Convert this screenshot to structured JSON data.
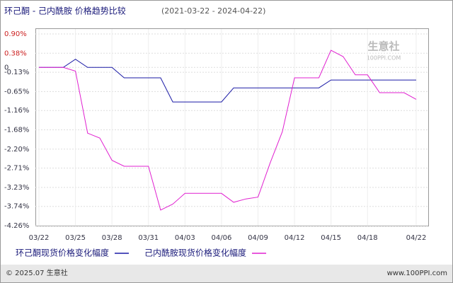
{
  "chart_data": {
    "type": "line",
    "title": "环己酮 - 己内酰胺  价格趋势比较",
    "subtitle": "(2021-03-22 - 2024-04-22)",
    "categories": [
      "03/22",
      null,
      null,
      "03/25",
      null,
      null,
      "03/28",
      null,
      null,
      "03/31",
      null,
      null,
      "04/03",
      null,
      null,
      "04/06",
      null,
      null,
      "04/09",
      null,
      null,
      "04/12",
      null,
      null,
      "04/15",
      null,
      null,
      "04/18",
      null,
      null,
      null,
      "04/22"
    ],
    "series": [
      {
        "name": "环己酮现货价格变化幅度",
        "color": "#1a1aa6",
        "values": [
          0,
          0,
          0,
          0.22,
          0,
          0,
          0,
          -0.28,
          -0.28,
          -0.28,
          -0.28,
          -0.93,
          -0.93,
          -0.93,
          -0.93,
          -0.93,
          -0.55,
          -0.55,
          -0.55,
          -0.55,
          -0.55,
          -0.55,
          -0.55,
          -0.55,
          -0.34,
          -0.34,
          -0.34,
          -0.34,
          -0.34,
          -0.34,
          -0.34,
          -0.34
        ]
      },
      {
        "name": "己内酰胺现货价格变化幅度",
        "color": "#e020d0",
        "values": [
          0,
          0,
          0,
          -0.1,
          -1.77,
          -1.9,
          -2.5,
          -2.66,
          -2.66,
          -2.66,
          -3.84,
          -3.68,
          -3.39,
          -3.39,
          -3.39,
          -3.39,
          -3.63,
          -3.54,
          -3.49,
          -2.57,
          -1.73,
          -0.28,
          -0.28,
          -0.28,
          0.46,
          0.29,
          -0.2,
          -0.2,
          -0.68,
          -0.68,
          -0.68,
          -0.86
        ]
      }
    ],
    "ylim": [
      -4.26,
      0.9
    ],
    "yticks": [
      {
        "value": 0.9,
        "label": "0.90%"
      },
      {
        "value": 0.38,
        "label": "0.38%"
      },
      0,
      {
        "value": -0.13,
        "label": "-0.13%"
      },
      {
        "value": -0.65,
        "label": "-0.65%"
      },
      {
        "value": -1.16,
        "label": "-1.16%"
      },
      {
        "value": -1.68,
        "label": "-1.68%"
      },
      {
        "value": -2.2,
        "label": "-2.20%"
      },
      {
        "value": -2.71,
        "label": "-2.71%"
      },
      {
        "value": -3.23,
        "label": "-3.23%"
      },
      {
        "value": -3.74,
        "label": "-3.74%"
      },
      {
        "value": -4.26,
        "label": "-4.26%"
      }
    ],
    "grid": true
  },
  "watermark": {
    "name": "生意社",
    "url": "100PPI.COM"
  },
  "footer": {
    "copyright": "© 2025.07 生意社",
    "url": "www.100PPI.com"
  }
}
